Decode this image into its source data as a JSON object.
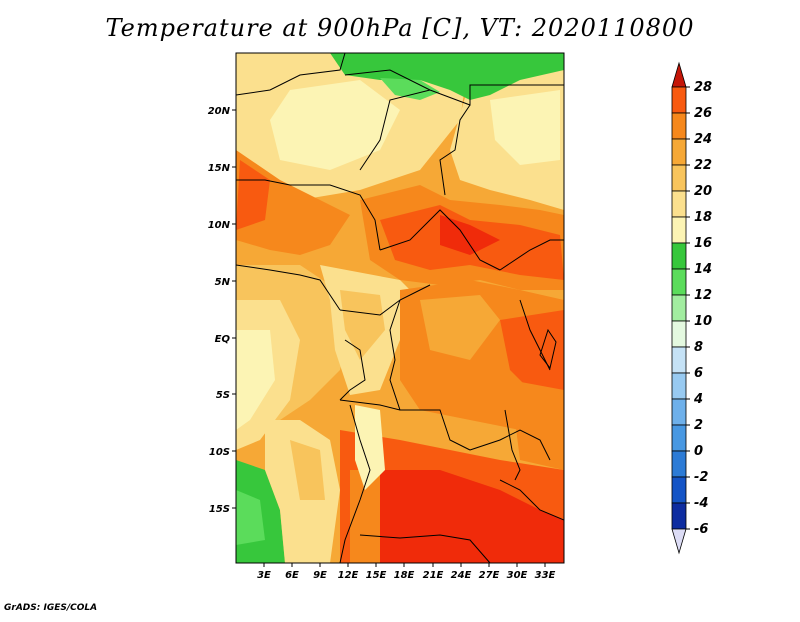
{
  "title": "Temperature at 900hPa [C], VT: 2020110800",
  "footer": "GrADS: IGES/COLA",
  "map": {
    "lat_labels": [
      "20N",
      "15N",
      "10N",
      "5N",
      "EQ",
      "5S",
      "10S",
      "15S"
    ],
    "lon_labels": [
      "3E",
      "6E",
      "9E",
      "12E",
      "15E",
      "18E",
      "21E",
      "24E",
      "27E",
      "30E",
      "33E"
    ]
  },
  "colorbar": {
    "levels": [
      "28",
      "26",
      "24",
      "22",
      "20",
      "18",
      "16",
      "14",
      "12",
      "10",
      "8",
      "6",
      "4",
      "2",
      "0",
      "-2",
      "-4",
      "-6"
    ],
    "colors": [
      "#f02b0a",
      "#f85a10",
      "#f6881c",
      "#f6a836",
      "#f8c45c",
      "#fbe08e",
      "#fcf4b4",
      "#37c73c",
      "#5bdc5b",
      "#a2eda0",
      "#e4f9e0",
      "#c5e2f6",
      "#98caf1",
      "#6eb0ea",
      "#4898e2",
      "#2c7bd6",
      "#1454c6",
      "#0d2ca0",
      "#0b0a5f"
    ],
    "top_arrow_color": "#c41608",
    "bottom_arrow_color": "#dcdcf5"
  }
}
